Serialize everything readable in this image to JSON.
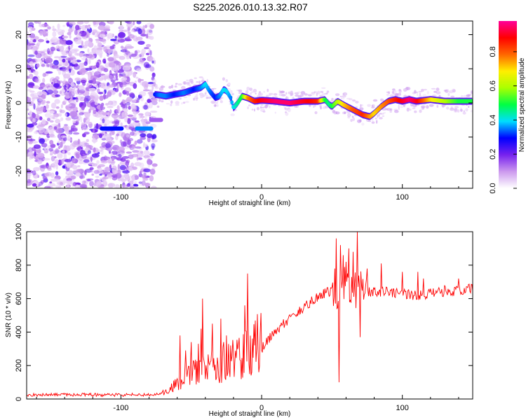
{
  "figure": {
    "title": "S225.2026.010.13.32.R07"
  },
  "chart_data": [
    {
      "type": "heatmap",
      "title": "S225.2026.010.13.32.R07",
      "xlabel": "Height of straight line (km)",
      "ylabel": "Frequency (Hz)",
      "xlim": [
        -167,
        150
      ],
      "ylim": [
        -25,
        24
      ],
      "xticks": [
        -100,
        0,
        100
      ],
      "yticks": [
        -20,
        -10,
        0,
        10,
        20
      ],
      "noise_region_x": [
        -167,
        -76
      ],
      "ridge_x": [
        -76,
        -72,
        -68,
        -62,
        -55,
        -48,
        -43,
        -40,
        -37,
        -33,
        -30,
        -27,
        -25,
        -22,
        -20,
        -17,
        -14,
        -10,
        -5,
        0,
        10,
        20,
        30,
        40,
        45,
        48,
        50,
        54,
        58,
        65,
        72,
        77,
        80,
        85,
        90,
        95,
        100,
        105,
        110,
        120,
        130,
        140,
        150
      ],
      "ridge_freq": [
        2.5,
        2.3,
        2.0,
        2.5,
        3.0,
        4.0,
        4.5,
        5.5,
        3.5,
        1.5,
        2.0,
        4.0,
        3.5,
        1.5,
        -1.5,
        0.0,
        2.0,
        1.5,
        0.5,
        0.8,
        0.5,
        0.0,
        0.5,
        0.5,
        1.0,
        -0.5,
        -1.0,
        0.5,
        -0.5,
        -2.0,
        -3.5,
        -4.0,
        -3.0,
        -1.0,
        0.5,
        1.0,
        0.5,
        1.0,
        0.5,
        1.0,
        0.5,
        0.5,
        0.5
      ],
      "ridge_amp": [
        0.3,
        0.35,
        0.35,
        0.3,
        0.35,
        0.3,
        0.35,
        0.4,
        0.35,
        0.3,
        0.35,
        0.4,
        0.4,
        0.35,
        0.4,
        0.45,
        0.5,
        0.75,
        0.85,
        0.9,
        0.95,
        0.95,
        0.9,
        0.85,
        0.5,
        0.45,
        0.5,
        0.6,
        0.7,
        0.8,
        0.85,
        0.75,
        0.7,
        0.75,
        0.8,
        0.85,
        0.9,
        0.95,
        0.9,
        0.7,
        0.6,
        0.5,
        0.5
      ],
      "secondary_features": [
        {
          "x_range": [
            -115,
            -98
          ],
          "freq": -7.5,
          "amp": 0.3
        },
        {
          "x_range": [
            -90,
            -77
          ],
          "freq": -7.5,
          "amp": 0.35
        },
        {
          "x_range": [
            -80,
            -70
          ],
          "freq": -5.0,
          "amp": 0.15
        }
      ],
      "colorbar": {
        "label": "Normalized spectral amplitude",
        "ticks": [
          0.0,
          0.2,
          0.4,
          0.6,
          0.8
        ],
        "tick_labels": [
          "0.0",
          "0.2",
          "0.4",
          "0.6",
          "0.8"
        ],
        "range": [
          0,
          0.98
        ],
        "colors": [
          "#ffffff",
          "#cc99ee",
          "#7722ee",
          "#0000ff",
          "#00ddff",
          "#00ff44",
          "#aaff00",
          "#ffee00",
          "#ff6600",
          "#ff0000",
          "#ff0099"
        ]
      }
    },
    {
      "type": "line",
      "title": "",
      "xlabel": "Height of straight line (km)",
      "ylabel": "SNR (10 * v/v)",
      "xlim": [
        -167,
        150
      ],
      "ylim": [
        0,
        1000
      ],
      "xticks": [
        -100,
        0,
        100
      ],
      "yticks": [
        0,
        200,
        400,
        600,
        800,
        1000
      ],
      "color": "#ff0000",
      "envelope": {
        "x": [
          -167,
          -80,
          -70,
          -60,
          -50,
          -40,
          -30,
          -20,
          -10,
          0,
          10,
          20,
          30,
          40,
          50,
          55,
          60,
          70,
          80,
          90,
          100,
          110,
          120,
          130,
          140,
          150
        ],
        "y": [
          25,
          25,
          35,
          70,
          130,
          140,
          170,
          190,
          230,
          300,
          410,
          480,
          550,
          610,
          650,
          660,
          670,
          650,
          640,
          640,
          630,
          620,
          630,
          640,
          650,
          660
        ]
      },
      "spikes": {
        "x": [
          -58,
          -54,
          -50,
          -45,
          -43,
          -42,
          -35,
          -29,
          -27,
          -25,
          -22,
          -12,
          -10,
          53,
          55,
          56,
          58,
          60,
          62,
          65,
          68,
          70,
          75,
          85,
          100,
          111,
          115,
          130,
          140
        ],
        "y": [
          380,
          290,
          340,
          330,
          420,
          600,
          450,
          480,
          340,
          380,
          320,
          560,
          750,
          960,
          100,
          920,
          860,
          820,
          900,
          880,
          1000,
          370,
          780,
          810,
          760,
          760,
          720,
          680,
          720
        ]
      }
    }
  ]
}
